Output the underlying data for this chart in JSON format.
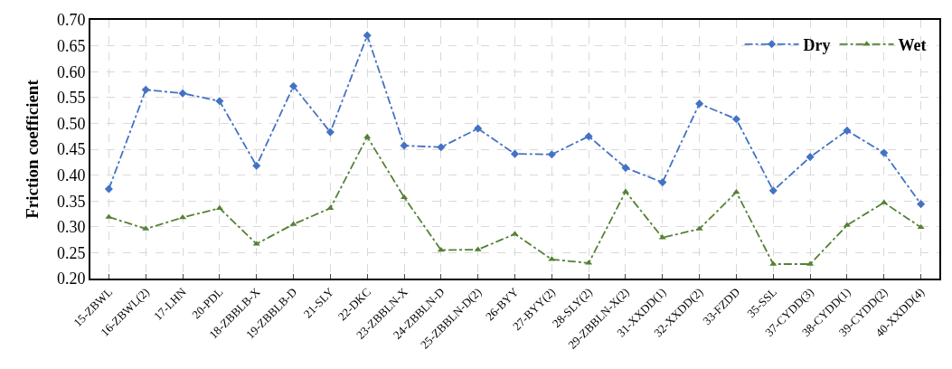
{
  "chart_data": {
    "type": "line",
    "ylabel": "Friction coefficient",
    "categories": [
      "15-ZBWL",
      "16-ZBWL(2)",
      "17-LHN",
      "20-PDL",
      "18-ZBBLB-X",
      "19-ZBBLB-D",
      "21-SLY",
      "22-DKC",
      "23-ZBBLN-X",
      "24-ZBBLN-D",
      "25-ZBBLN-D(2)",
      "26-BYY",
      "27-BYY(2)",
      "28-SLY(2)",
      "29-ZBBLN-X(2)",
      "31-XXDD(1)",
      "32-XXDD(2)",
      "33-FZDD",
      "35-SSL",
      "37-CYDD(3)",
      "38-CYDD(1)",
      "39-CYDD(2)",
      "40-XXDD(4)"
    ],
    "series": [
      {
        "name": "Dry",
        "color": "#4472c4",
        "marker": "diamond",
        "values": [
          0.373,
          0.565,
          0.558,
          0.543,
          0.418,
          0.572,
          0.483,
          0.67,
          0.457,
          0.454,
          0.49,
          0.441,
          0.44,
          0.475,
          0.414,
          0.386,
          0.538,
          0.508,
          0.37,
          0.435,
          0.486,
          0.443,
          0.344
        ]
      },
      {
        "name": "Wet",
        "color": "#548235",
        "marker": "triangle",
        "values": [
          0.319,
          0.296,
          0.318,
          0.336,
          0.267,
          0.305,
          0.336,
          0.474,
          0.357,
          0.255,
          0.256,
          0.286,
          0.237,
          0.23,
          0.368,
          0.279,
          0.296,
          0.367,
          0.228,
          0.228,
          0.303,
          0.347,
          0.299
        ]
      }
    ],
    "ylim": [
      0.2,
      0.7
    ],
    "yticks": [
      {
        "value": 0.2,
        "label": "0.20"
      },
      {
        "value": 0.25,
        "label": "0.25"
      },
      {
        "value": 0.3,
        "label": "0.30"
      },
      {
        "value": 0.35,
        "label": "0.35"
      },
      {
        "value": 0.4,
        "label": "0.40"
      },
      {
        "value": 0.45,
        "label": "0.45"
      },
      {
        "value": 0.5,
        "label": "0.50"
      },
      {
        "value": 0.55,
        "label": "0.55"
      },
      {
        "value": 0.6,
        "label": "0.60"
      },
      {
        "value": 0.65,
        "label": "0.65"
      },
      {
        "value": 0.7,
        "label": "0.70"
      }
    ],
    "grid": true,
    "legend": "top right",
    "line_style": "dashdot"
  }
}
